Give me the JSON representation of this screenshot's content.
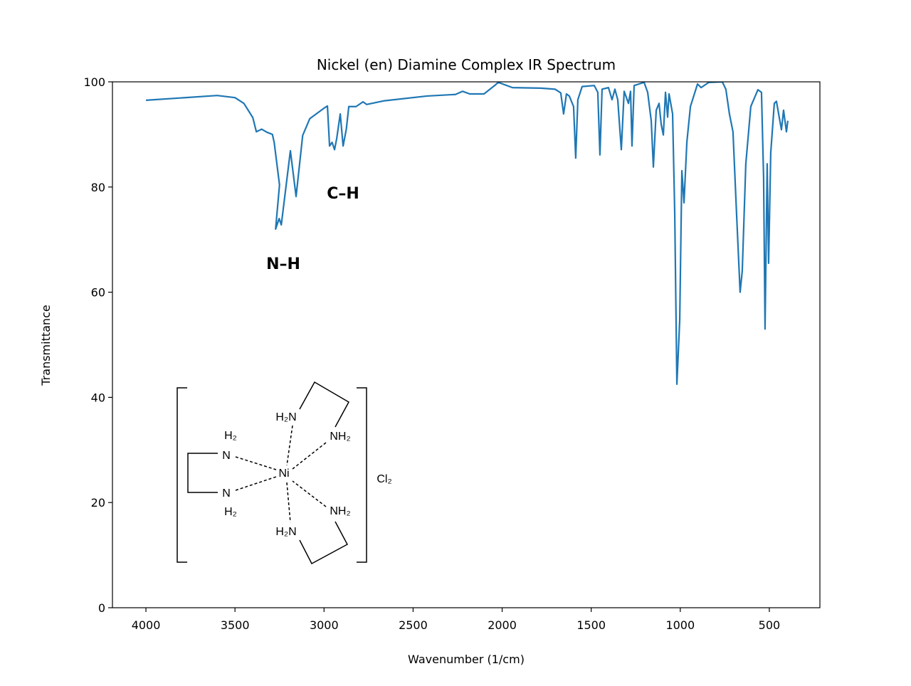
{
  "chart_data": {
    "type": "line",
    "title": "Nickel (en) Diamine Complex IR Spectrum",
    "x_label": "Wavenumber (1/cm)",
    "y_label": "Transmittance",
    "xlim": [
      4188,
      216
    ],
    "ylim": [
      0,
      100
    ],
    "xticks": [
      4000,
      3500,
      3000,
      2500,
      2000,
      1500,
      1000,
      500
    ],
    "yticks": [
      0,
      20,
      40,
      60,
      80,
      100
    ],
    "annotations": [
      "N–H",
      "C–H"
    ],
    "series": [
      {
        "color": "#1f77b4",
        "x": [
          4000,
          3600,
          3500,
          3450,
          3400,
          3380,
          3350,
          3320,
          3290,
          3280,
          3250,
          3272,
          3252,
          3240,
          3189,
          3157,
          3120,
          3080,
          3000,
          2981,
          2969,
          2955,
          2941,
          2929,
          2909,
          2893,
          2875,
          2861,
          2820,
          2781,
          2761,
          2661,
          2422,
          2262,
          2222,
          2182,
          2102,
          2042,
          2022,
          1942,
          1782,
          1703,
          1671,
          1655,
          1639,
          1623,
          1599,
          1587,
          1575,
          1551,
          1483,
          1463,
          1451,
          1439,
          1403,
          1383,
          1367,
          1351,
          1331,
          1315,
          1291,
          1279,
          1271,
          1259,
          1203,
          1183,
          1163,
          1151,
          1135,
          1119,
          1107,
          1095,
          1083,
          1071,
          1063,
          1043,
          1031,
          1019,
          1003,
          991,
          979,
          963,
          943,
          903,
          883,
          840,
          764,
          744,
          724,
          704,
          684,
          664,
          652,
          632,
          604,
          564,
          544,
          532,
          524,
          512,
          504,
          492,
          472,
          460,
          444,
          432,
          420,
          404,
          396
        ],
        "values": [
          96.5,
          97.4,
          97.0,
          95.9,
          93.2,
          90.5,
          91.0,
          90.4,
          90.0,
          88.5,
          80.4,
          72.0,
          74.0,
          72.8,
          86.9,
          78.2,
          89.8,
          93.0,
          95.0,
          95.4,
          87.8,
          88.5,
          87.1,
          89.2,
          93.9,
          87.8,
          91.0,
          95.3,
          95.3,
          96.2,
          95.7,
          96.4,
          97.3,
          97.6,
          98.2,
          97.7,
          97.7,
          99.3,
          99.9,
          98.9,
          98.8,
          98.6,
          97.9,
          93.9,
          97.7,
          97.3,
          95.3,
          85.5,
          96.6,
          99.1,
          99.3,
          98.0,
          86.1,
          98.6,
          98.9,
          96.6,
          98.6,
          96.6,
          87.1,
          98.2,
          95.9,
          98.2,
          87.8,
          99.3,
          99.9,
          98.0,
          92.6,
          83.8,
          94.6,
          95.9,
          91.9,
          89.9,
          98.0,
          93.3,
          97.7,
          93.9,
          75.0,
          42.5,
          54.7,
          83.1,
          77.0,
          88.5,
          95.3,
          99.6,
          98.9,
          99.9,
          100,
          98.6,
          93.9,
          90.5,
          75.0,
          60.0,
          64.0,
          84.4,
          95.3,
          98.5,
          98.0,
          81.7,
          53.0,
          84.4,
          65.5,
          86.5,
          95.9,
          96.3,
          93.2,
          90.9,
          94.6,
          90.5,
          92.6
        ]
      }
    ]
  },
  "structure": {
    "labels": [
      "H₂N",
      "NH₂",
      "H₂",
      "N",
      "Ni",
      "N",
      "H₂",
      "NH₂",
      "H₂N",
      "Cl₂"
    ]
  }
}
